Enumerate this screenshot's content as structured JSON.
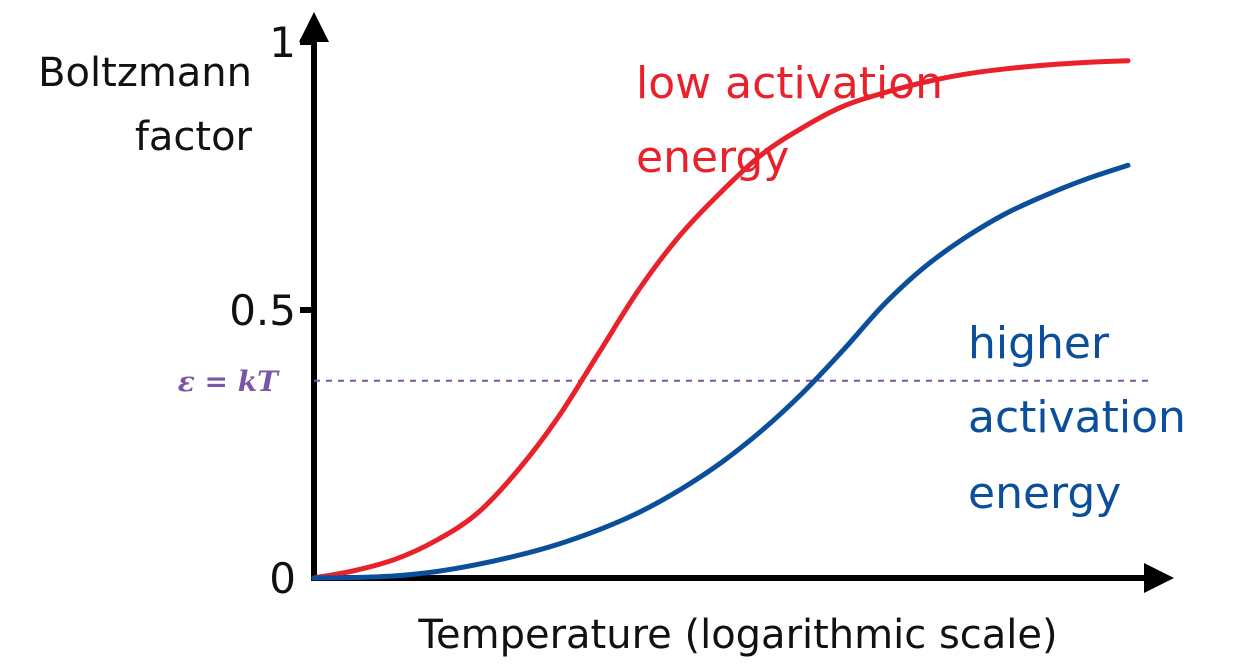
{
  "chart_data": {
    "type": "line",
    "ylabel_lines": [
      "Boltzmann",
      "factor"
    ],
    "xlabel": "Temperature (logarithmic scale)",
    "x_scale": "log",
    "ylim": [
      0,
      1
    ],
    "y_ticks": [
      {
        "value": 0,
        "label": "0"
      },
      {
        "value": 0.5,
        "label": "0.5"
      },
      {
        "value": 1,
        "label": "1"
      }
    ],
    "reference_line": {
      "label": "ε = kT",
      "value": 0.368,
      "color": "#7b56a6",
      "style": "dashed"
    },
    "grid": false,
    "series": [
      {
        "label_lines": [
          "low activation",
          "energy"
        ],
        "color": "#e8212b",
        "x": [
          0,
          0.05,
          0.1,
          0.15,
          0.2,
          0.25,
          0.3,
          0.35,
          0.4,
          0.45,
          0.5,
          0.55,
          0.6,
          0.65,
          0.7,
          0.75,
          0.8,
          0.85,
          0.9,
          0.95,
          1.0
        ],
        "y": [
          0.0,
          0.014,
          0.035,
          0.07,
          0.12,
          0.2,
          0.3,
          0.42,
          0.54,
          0.64,
          0.72,
          0.79,
          0.84,
          0.88,
          0.905,
          0.925,
          0.94,
          0.95,
          0.957,
          0.962,
          0.965
        ]
      },
      {
        "label_lines": [
          "higher",
          "activation",
          "energy"
        ],
        "color": "#0b4f9c",
        "x": [
          0,
          0.05,
          0.1,
          0.15,
          0.2,
          0.25,
          0.3,
          0.35,
          0.4,
          0.45,
          0.5,
          0.55,
          0.6,
          0.65,
          0.7,
          0.75,
          0.8,
          0.85,
          0.9,
          0.95,
          1.0
        ],
        "y": [
          0.0,
          0.001,
          0.004,
          0.012,
          0.025,
          0.042,
          0.063,
          0.09,
          0.123,
          0.165,
          0.215,
          0.275,
          0.345,
          0.425,
          0.51,
          0.58,
          0.635,
          0.68,
          0.715,
          0.745,
          0.77
        ]
      }
    ]
  }
}
